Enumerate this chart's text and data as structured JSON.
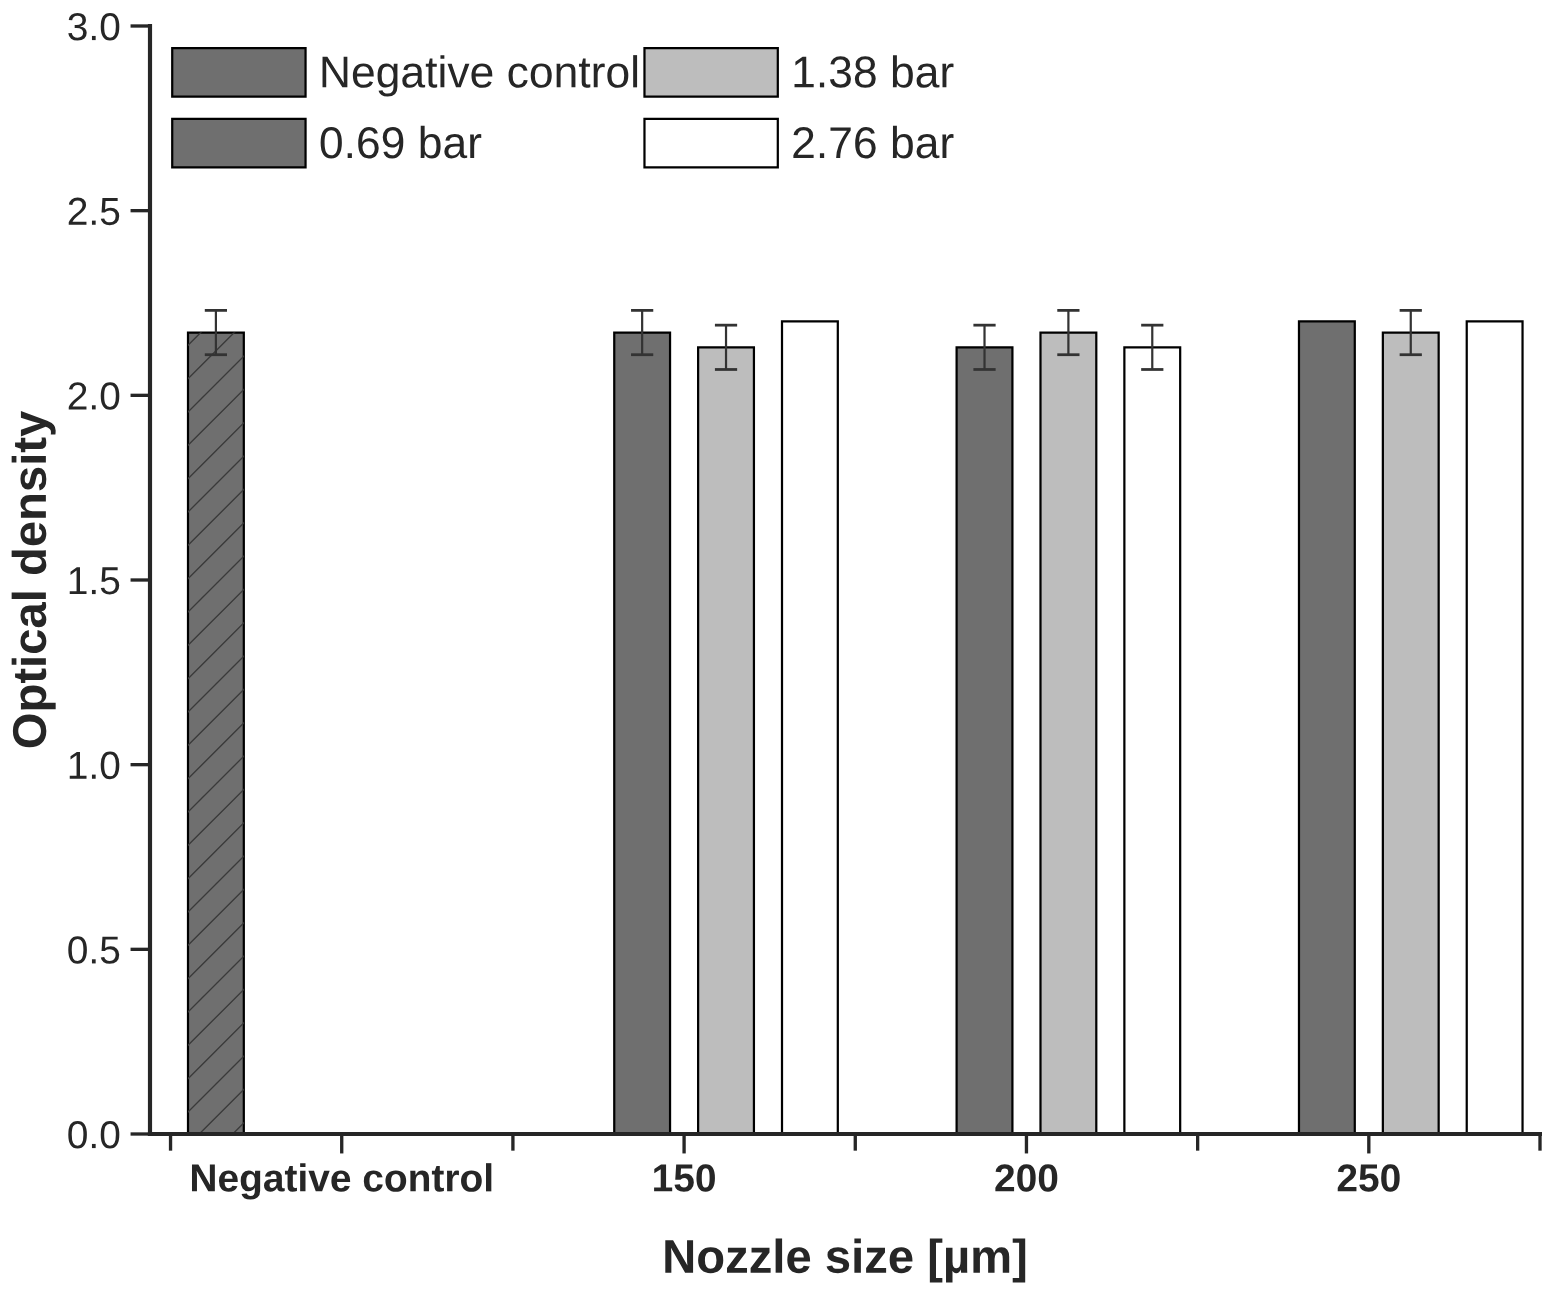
{
  "chart_data": {
    "type": "bar",
    "xlabel": "Nozzle size [µm]",
    "ylabel": "Optical density",
    "categories": [
      "Negative control",
      "150",
      "200",
      "250"
    ],
    "series": [
      {
        "name": "Negative control",
        "color": "#6f6f6f",
        "values": [
          2.17,
          null,
          null,
          null
        ],
        "errors": [
          0.06,
          null,
          null,
          null
        ]
      },
      {
        "name": "0.69 bar",
        "color": "#6f6f6f",
        "values": [
          null,
          2.17,
          2.13,
          2.2
        ],
        "errors": [
          null,
          0.06,
          0.06,
          null
        ]
      },
      {
        "name": "1.38 bar",
        "color": "#bdbdbd",
        "values": [
          null,
          2.13,
          2.17,
          2.17
        ],
        "errors": [
          null,
          0.06,
          0.06,
          0.06
        ]
      },
      {
        "name": "2.76 bar",
        "color": "#ffffff",
        "values": [
          null,
          2.2,
          2.13,
          2.2
        ],
        "errors": [
          null,
          null,
          0.06,
          null
        ]
      }
    ],
    "ylim": [
      0,
      3.0
    ],
    "yticks": [
      {
        "value": 0,
        "label": "0.0"
      },
      {
        "value": 0.5,
        "label": "0.5"
      },
      {
        "value": 1.0,
        "label": "1.0"
      },
      {
        "value": 1.5,
        "label": "1.5"
      },
      {
        "value": 2.0,
        "label": "2.0"
      },
      {
        "value": 2.5,
        "label": "2.5"
      },
      {
        "value": 3.0,
        "label": "3.0"
      }
    ],
    "legend": "top left",
    "grid": false
  }
}
